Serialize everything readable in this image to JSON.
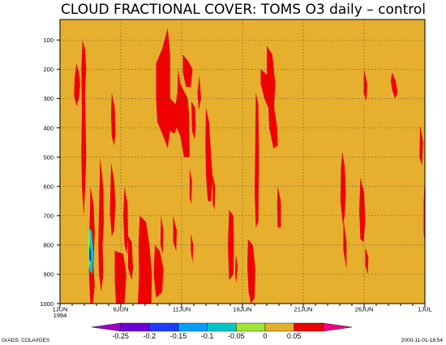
{
  "chart_data": {
    "type": "heatmap",
    "title": "CLOUD FRACTIONAL COVER: TOMS O3 daily – control",
    "xlabel": "",
    "ylabel": "",
    "x_tick_labels": [
      "1JUN\n1994",
      "6JUN",
      "11JUN",
      "16JUN",
      "21JUN",
      "26JUN",
      "1JUL"
    ],
    "x_tick_days": [
      1,
      6,
      11,
      16,
      21,
      26,
      31
    ],
    "xlim": [
      1,
      31
    ],
    "y_tick_labels": [
      "100",
      "200",
      "300",
      "400",
      "500",
      "600",
      "700",
      "800",
      "900",
      "1000"
    ],
    "y_ticks": [
      100,
      200,
      300,
      400,
      500,
      600,
      700,
      800,
      900,
      1000
    ],
    "ylim": [
      1000,
      30
    ],
    "grid": true,
    "legend": "colorbar-bottom",
    "colorbar": {
      "levels": [
        "-0.25",
        "-0.2",
        "-0.15",
        "-0.1",
        "-0.05",
        "0",
        "0.05"
      ],
      "colors": [
        "#a000c8",
        "#6e00dc",
        "#1e3cff",
        "#00a0ff",
        "#00c8c8",
        "#a0e632",
        "#e6af2d",
        "#f00000",
        "#f00082"
      ]
    },
    "background_color": "#e6af2d",
    "regions": [
      {
        "fill": "#f00000",
        "pts": [
          [
            2.35,
            180
          ],
          [
            2.55,
            210
          ],
          [
            2.65,
            250
          ],
          [
            2.55,
            300
          ],
          [
            2.35,
            325
          ],
          [
            2.15,
            290
          ],
          [
            2.2,
            230
          ]
        ]
      },
      {
        "fill": "#f00000",
        "pts": [
          [
            2.85,
            100
          ],
          [
            3.05,
            130
          ],
          [
            3.15,
            200
          ],
          [
            3.05,
            280
          ],
          [
            3.1,
            380
          ],
          [
            3.15,
            500
          ],
          [
            3.05,
            620
          ],
          [
            2.95,
            700
          ],
          [
            2.8,
            600
          ],
          [
            2.75,
            480
          ],
          [
            2.8,
            350
          ],
          [
            2.75,
            200
          ]
        ]
      },
      {
        "fill": "#f00000",
        "pts": [
          [
            3.5,
            600
          ],
          [
            3.75,
            660
          ],
          [
            3.85,
            760
          ],
          [
            3.75,
            870
          ],
          [
            3.85,
            940
          ],
          [
            3.7,
            1000
          ],
          [
            3.5,
            1000
          ],
          [
            3.4,
            920
          ],
          [
            3.35,
            820
          ],
          [
            3.45,
            700
          ]
        ]
      },
      {
        "fill": "#f00000",
        "pts": [
          [
            4.3,
            500
          ],
          [
            4.55,
            600
          ],
          [
            4.6,
            720
          ],
          [
            4.5,
            800
          ],
          [
            4.55,
            900
          ],
          [
            4.4,
            960
          ],
          [
            4.2,
            900
          ],
          [
            4.15,
            800
          ],
          [
            4.2,
            700
          ]
        ]
      },
      {
        "fill": "#f00000",
        "pts": [
          [
            5.25,
            280
          ],
          [
            5.5,
            330
          ],
          [
            5.55,
            420
          ],
          [
            5.45,
            460
          ],
          [
            5.25,
            430
          ],
          [
            5.2,
            350
          ]
        ]
      },
      {
        "fill": "#f00000",
        "pts": [
          [
            5.2,
            520
          ],
          [
            5.45,
            580
          ],
          [
            5.55,
            660
          ],
          [
            5.45,
            750
          ],
          [
            5.25,
            770
          ],
          [
            5.1,
            690
          ],
          [
            5.15,
            600
          ]
        ]
      },
      {
        "fill": "#f00000",
        "pts": [
          [
            5.5,
            820
          ],
          [
            6.2,
            830
          ],
          [
            6.45,
            900
          ],
          [
            6.3,
            1000
          ],
          [
            5.6,
            1000
          ],
          [
            5.5,
            920
          ]
        ]
      },
      {
        "fill": "#f00000",
        "pts": [
          [
            6.3,
            600
          ],
          [
            6.55,
            660
          ],
          [
            6.6,
            780
          ],
          [
            6.5,
            830
          ],
          [
            6.3,
            800
          ],
          [
            6.2,
            700
          ]
        ]
      },
      {
        "fill": "#f00000",
        "pts": [
          [
            6.6,
            770
          ],
          [
            6.9,
            790
          ],
          [
            7.0,
            880
          ],
          [
            6.9,
            920
          ],
          [
            6.6,
            880
          ]
        ]
      },
      {
        "fill": "#f00000",
        "pts": [
          [
            7.55,
            700
          ],
          [
            8.05,
            720
          ],
          [
            8.35,
            800
          ],
          [
            8.55,
            900
          ],
          [
            8.5,
            1000
          ],
          [
            7.4,
            1000
          ],
          [
            7.5,
            900
          ],
          [
            7.45,
            800
          ]
        ]
      },
      {
        "fill": "#f00000",
        "pts": [
          [
            8.8,
            800
          ],
          [
            9.2,
            820
          ],
          [
            9.5,
            880
          ],
          [
            9.4,
            960
          ],
          [
            8.9,
            980
          ],
          [
            8.7,
            900
          ]
        ]
      },
      {
        "fill": "#f00000",
        "pts": [
          [
            9.3,
            700
          ],
          [
            9.5,
            750
          ],
          [
            9.45,
            830
          ],
          [
            9.25,
            800
          ]
        ]
      },
      {
        "fill": "#f00000",
        "pts": [
          [
            8.9,
            180
          ],
          [
            9.4,
            130
          ],
          [
            9.85,
            60
          ],
          [
            10.05,
            150
          ],
          [
            10.05,
            300
          ],
          [
            10.3,
            310
          ],
          [
            10.5,
            320
          ],
          [
            10.65,
            280
          ],
          [
            10.7,
            200
          ],
          [
            10.9,
            250
          ],
          [
            11.5,
            300
          ],
          [
            11.6,
            350
          ],
          [
            11.65,
            500
          ],
          [
            11.2,
            500
          ],
          [
            10.9,
            430
          ],
          [
            10.6,
            400
          ],
          [
            10.4,
            420
          ],
          [
            10.05,
            410
          ],
          [
            9.85,
            470
          ],
          [
            9.5,
            430
          ],
          [
            9.0,
            380
          ],
          [
            8.9,
            300
          ]
        ]
      },
      {
        "fill": "#f00000",
        "pts": [
          [
            11.1,
            150
          ],
          [
            11.5,
            170
          ],
          [
            11.9,
            200
          ],
          [
            11.75,
            260
          ],
          [
            11.35,
            260
          ],
          [
            11.1,
            210
          ]
        ]
      },
      {
        "fill": "#f00000",
        "pts": [
          [
            11.8,
            310
          ],
          [
            12.1,
            330
          ],
          [
            12.15,
            400
          ],
          [
            12.05,
            440
          ],
          [
            11.85,
            410
          ]
        ]
      },
      {
        "fill": "#f00000",
        "pts": [
          [
            10.3,
            700
          ],
          [
            10.6,
            750
          ],
          [
            10.55,
            820
          ],
          [
            10.3,
            790
          ]
        ]
      },
      {
        "fill": "#f00000",
        "pts": [
          [
            11.65,
            540
          ],
          [
            11.85,
            580
          ],
          [
            11.8,
            660
          ],
          [
            11.65,
            640
          ]
        ]
      },
      {
        "fill": "#f00000",
        "pts": [
          [
            11.75,
            760
          ],
          [
            11.95,
            800
          ],
          [
            11.9,
            860
          ],
          [
            11.75,
            820
          ]
        ]
      },
      {
        "fill": "#f00000",
        "pts": [
          [
            12.45,
            220
          ],
          [
            12.6,
            300
          ],
          [
            12.4,
            340
          ],
          [
            12.3,
            280
          ]
        ]
      },
      {
        "fill": "#f00000",
        "pts": [
          [
            13.0,
            330
          ],
          [
            13.25,
            380
          ],
          [
            13.4,
            480
          ],
          [
            13.55,
            580
          ],
          [
            13.4,
            650
          ],
          [
            13.15,
            650
          ],
          [
            13.0,
            560
          ],
          [
            12.95,
            450
          ]
        ]
      },
      {
        "fill": "#f00000",
        "pts": [
          [
            13.55,
            560
          ],
          [
            13.75,
            600
          ],
          [
            13.7,
            680
          ],
          [
            13.55,
            660
          ]
        ]
      },
      {
        "fill": "#f00000",
        "pts": [
          [
            14.9,
            680
          ],
          [
            15.25,
            700
          ],
          [
            15.3,
            800
          ],
          [
            15.25,
            900
          ],
          [
            14.9,
            920
          ],
          [
            14.8,
            800
          ]
        ]
      },
      {
        "fill": "#f00000",
        "pts": [
          [
            15.45,
            830
          ],
          [
            15.6,
            870
          ],
          [
            15.5,
            930
          ],
          [
            15.4,
            900
          ]
        ]
      },
      {
        "fill": "#f00000",
        "pts": [
          [
            16.45,
            780
          ],
          [
            16.85,
            800
          ],
          [
            17.05,
            880
          ],
          [
            17.0,
            980
          ],
          [
            16.7,
            1000
          ],
          [
            16.5,
            960
          ],
          [
            16.4,
            870
          ]
        ]
      },
      {
        "fill": "#f00000",
        "pts": [
          [
            17.1,
            280
          ],
          [
            17.3,
            320
          ],
          [
            17.35,
            500
          ],
          [
            17.3,
            720
          ],
          [
            17.1,
            740
          ],
          [
            17.0,
            620
          ],
          [
            17.05,
            450
          ]
        ]
      },
      {
        "fill": "#f00000",
        "pts": [
          [
            17.5,
            200
          ],
          [
            18.05,
            220
          ],
          [
            18.2,
            280
          ],
          [
            18.1,
            330
          ],
          [
            17.8,
            300
          ],
          [
            17.5,
            250
          ]
        ]
      },
      {
        "fill": "#f00000",
        "pts": [
          [
            18.0,
            120
          ],
          [
            18.45,
            150
          ],
          [
            18.7,
            250
          ],
          [
            18.6,
            330
          ],
          [
            18.85,
            400
          ],
          [
            18.9,
            460
          ],
          [
            18.55,
            470
          ],
          [
            18.2,
            400
          ],
          [
            18.1,
            300
          ],
          [
            18.0,
            200
          ]
        ]
      },
      {
        "fill": "#f00000",
        "pts": [
          [
            18.9,
            600
          ],
          [
            19.15,
            650
          ],
          [
            19.15,
            740
          ],
          [
            18.9,
            740
          ],
          [
            18.85,
            660
          ]
        ]
      },
      {
        "fill": "#f00000",
        "pts": [
          [
            24.2,
            480
          ],
          [
            24.4,
            530
          ],
          [
            24.5,
            620
          ],
          [
            24.4,
            700
          ],
          [
            24.25,
            730
          ],
          [
            24.05,
            650
          ],
          [
            24.1,
            540
          ]
        ]
      },
      {
        "fill": "#f00000",
        "pts": [
          [
            24.3,
            710
          ],
          [
            24.55,
            790
          ],
          [
            24.55,
            880
          ],
          [
            24.3,
            820
          ]
        ]
      },
      {
        "fill": "#f00000",
        "pts": [
          [
            26.0,
            200
          ],
          [
            26.25,
            250
          ],
          [
            26.2,
            310
          ],
          [
            25.95,
            280
          ]
        ]
      },
      {
        "fill": "#f00000",
        "pts": [
          [
            25.7,
            570
          ],
          [
            26.0,
            620
          ],
          [
            26.1,
            720
          ],
          [
            25.95,
            790
          ],
          [
            25.7,
            780
          ],
          [
            25.6,
            680
          ]
        ]
      },
      {
        "fill": "#f00000",
        "pts": [
          [
            26.1,
            810
          ],
          [
            26.35,
            840
          ],
          [
            26.3,
            900
          ],
          [
            26.1,
            870
          ]
        ]
      },
      {
        "fill": "#f00000",
        "pts": [
          [
            28.3,
            210
          ],
          [
            28.6,
            240
          ],
          [
            28.75,
            280
          ],
          [
            28.55,
            300
          ],
          [
            28.3,
            270
          ],
          [
            28.2,
            240
          ]
        ]
      },
      {
        "fill": "#f00000",
        "pts": [
          [
            30.6,
            390
          ],
          [
            30.85,
            450
          ],
          [
            30.75,
            530
          ],
          [
            30.55,
            500
          ]
        ]
      },
      {
        "fill": "#f00000",
        "pts": [
          [
            30.95,
            600
          ],
          [
            31,
            620
          ],
          [
            31,
            790
          ],
          [
            30.9,
            760
          ],
          [
            30.9,
            660
          ]
        ]
      },
      {
        "fill": "#00c8c8",
        "pts": [
          [
            3.3,
            740
          ],
          [
            3.6,
            750
          ],
          [
            3.75,
            830
          ],
          [
            3.65,
            900
          ],
          [
            3.35,
            880
          ],
          [
            3.25,
            820
          ]
        ]
      },
      {
        "fill": "#a0e632",
        "pts": [
          [
            3.35,
            730
          ],
          [
            3.45,
            760
          ],
          [
            3.5,
            860
          ],
          [
            3.35,
            880
          ],
          [
            3.25,
            800
          ]
        ]
      },
      {
        "fill": "#1e3cff",
        "pts": [
          [
            3.4,
            800
          ],
          [
            3.55,
            820
          ],
          [
            3.55,
            860
          ],
          [
            3.4,
            850
          ]
        ]
      }
    ]
  },
  "footer": {
    "left": "GrADS: COLA/IGES",
    "right": "2000-11-01-18:54"
  }
}
